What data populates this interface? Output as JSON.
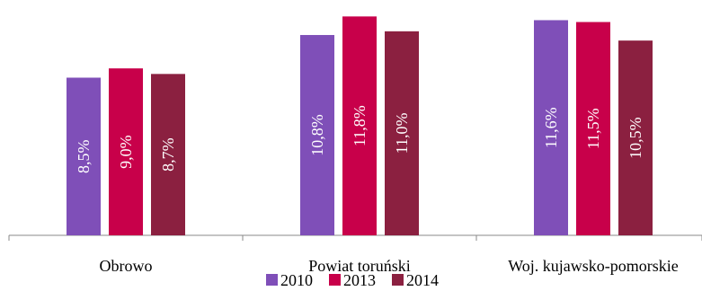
{
  "chart_data": {
    "type": "bar",
    "categories": [
      "Obrowo",
      "Powiat toruński",
      "Woj. kujawsko-pomorskie"
    ],
    "series": [
      {
        "name": "2010",
        "color": "#7f4fb8",
        "values": [
          8.5,
          10.8,
          11.6
        ],
        "labels": [
          "8,5%",
          "10,8%",
          "11,6%"
        ]
      },
      {
        "name": "2013",
        "color": "#c8004a",
        "values": [
          9.0,
          11.8,
          11.5
        ],
        "labels": [
          "9,0%",
          "11,8%",
          "11,5%"
        ]
      },
      {
        "name": "2014",
        "color": "#8b2040",
        "values": [
          8.7,
          11.0,
          10.5
        ],
        "labels": [
          "8,7%",
          "11,0%",
          "10,5%"
        ]
      }
    ],
    "ylim": [
      0,
      12
    ],
    "grid": false,
    "legend": "bottom",
    "title": "",
    "xlabel": "",
    "ylabel": ""
  }
}
